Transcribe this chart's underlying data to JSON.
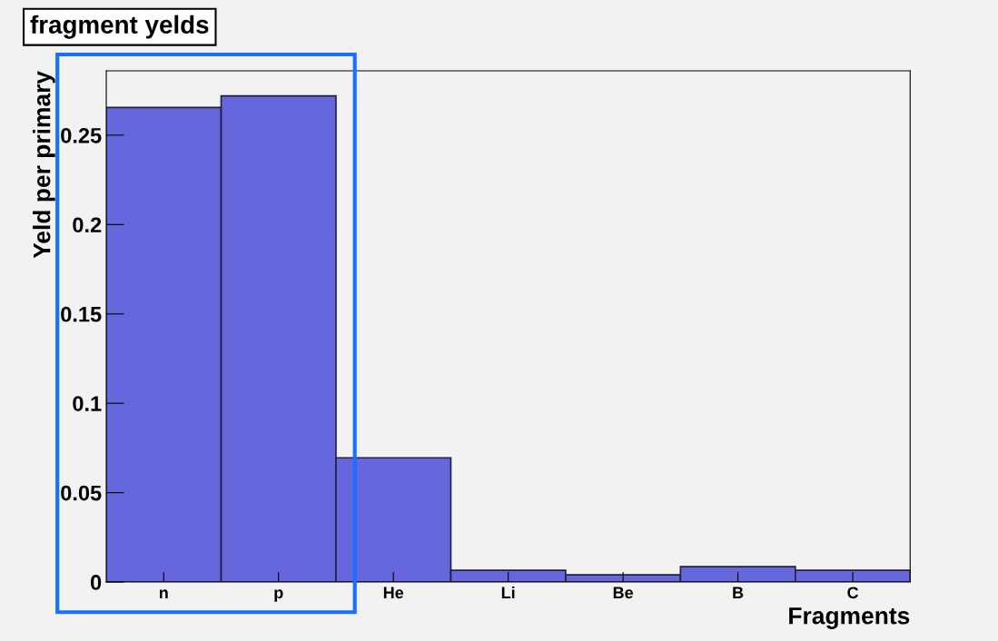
{
  "chart_data": {
    "type": "bar",
    "title": "fragment yelds",
    "xlabel": "Fragments",
    "ylabel": "Yeld per primary",
    "categories": [
      "n",
      "p",
      "He",
      "Li",
      "Be",
      "B",
      "C"
    ],
    "values": [
      0.2655,
      0.272,
      0.0695,
      0.0066,
      0.004,
      0.0086,
      0.0066
    ],
    "color": "#6666dd",
    "ylim": [
      0,
      0.286
    ],
    "yticks": [
      0,
      0.05,
      0.1,
      0.15,
      0.2,
      0.25
    ],
    "grid": false,
    "legend": false
  }
}
